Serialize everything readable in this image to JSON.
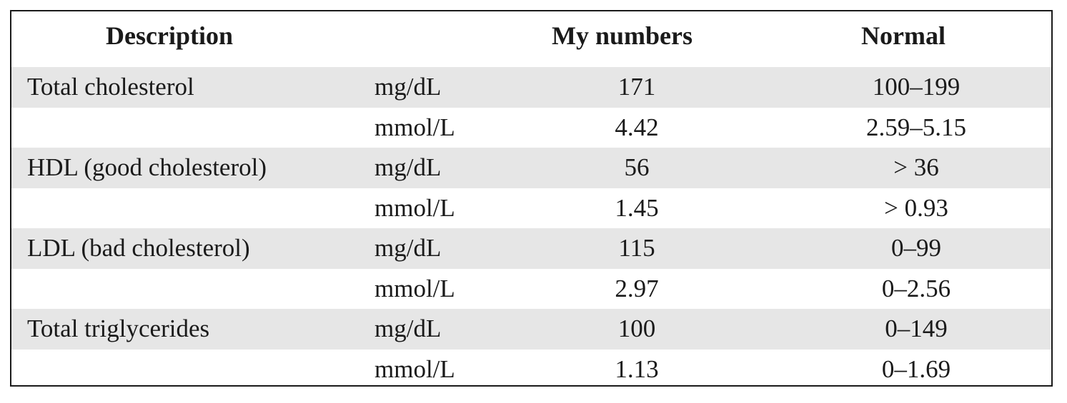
{
  "table": {
    "headers": {
      "description": "Description",
      "unit": "",
      "my_numbers": "My numbers",
      "normal": "Normal"
    },
    "rows": [
      {
        "description": "Total cholesterol",
        "unit": "mg/dL",
        "my_numbers": "171",
        "normal": "100–199"
      },
      {
        "description": "",
        "unit": "mmol/L",
        "my_numbers": "4.42",
        "normal": "2.59–5.15"
      },
      {
        "description": "HDL (good cholesterol)",
        "unit": "mg/dL",
        "my_numbers": "56",
        "normal": "> 36"
      },
      {
        "description": "",
        "unit": "mmol/L",
        "my_numbers": "1.45",
        "normal": "> 0.93"
      },
      {
        "description": "LDL (bad cholesterol)",
        "unit": "mg/dL",
        "my_numbers": "115",
        "normal": "0–99"
      },
      {
        "description": "",
        "unit": "mmol/L",
        "my_numbers": "2.97",
        "normal": "0–2.56"
      },
      {
        "description": "Total triglycerides",
        "unit": "mg/dL",
        "my_numbers": "100",
        "normal": "0–149"
      },
      {
        "description": "",
        "unit": "mmol/L",
        "my_numbers": "1.13",
        "normal": "0–1.69"
      }
    ]
  },
  "colors": {
    "shaded_row": "#e6e6e6",
    "border": "#1a1a1a",
    "text": "#1a1a1a"
  }
}
